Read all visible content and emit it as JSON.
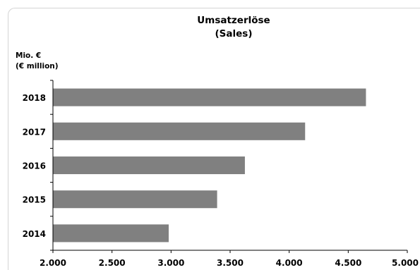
{
  "chart_data": {
    "type": "bar",
    "orientation": "horizontal",
    "title": "Umsatzerlöse",
    "subtitle": "(Sales)",
    "ylabel": "Mio. €",
    "ylabel_sub": "(€ million)",
    "categories": [
      "2018",
      "2017",
      "2016",
      "2015",
      "2014"
    ],
    "values": [
      4650,
      4135,
      3625,
      3390,
      2980
    ],
    "xlim": [
      2000,
      5000
    ],
    "xticks": [
      "2.000",
      "2.500",
      "3.000",
      "3.500",
      "4.000",
      "4.500",
      "5.000"
    ],
    "bar_color": "#808080",
    "grid": false,
    "legend": "none"
  }
}
